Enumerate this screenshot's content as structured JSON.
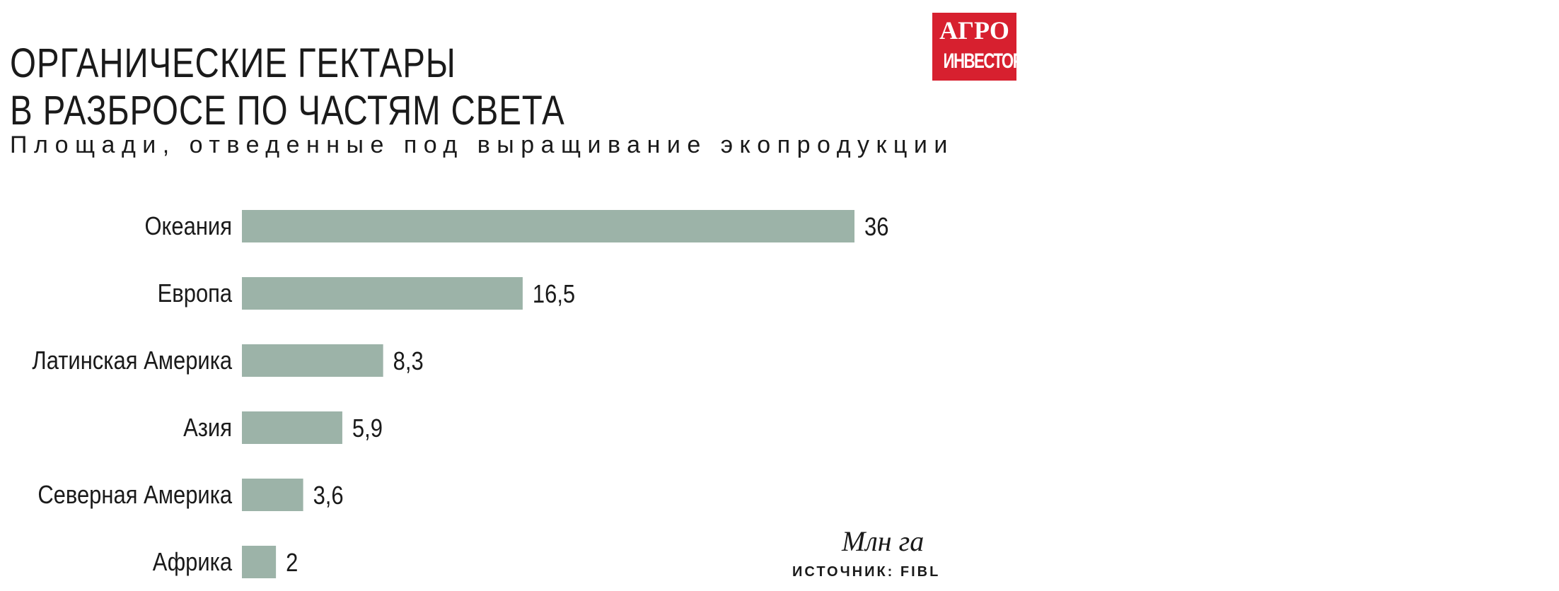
{
  "header": {
    "title_line1": "ОРГАНИЧЕСКИЕ ГЕКТАРЫ",
    "title_line2": "В РАЗБРОСЕ ПО ЧАСТЯМ СВЕТА",
    "subtitle": "Площади, отведенные под выращивание экопродукции"
  },
  "logo": {
    "line1": "АГРО",
    "line2": "ИНВЕСТОР",
    "color": "#d7202f"
  },
  "footer": {
    "unit": "Млн га",
    "source": "ИСТОЧНИК: FIBL"
  },
  "chart_data": {
    "type": "bar",
    "orientation": "horizontal",
    "categories": [
      "Океания",
      "Европа",
      "Латинская Америка",
      "Азия",
      "Северная Америка",
      "Африка"
    ],
    "values": [
      36,
      16.5,
      8.3,
      5.9,
      3.6,
      2
    ],
    "value_labels": [
      "36",
      "16,5",
      "8,3",
      "5,9",
      "3,6",
      "2"
    ],
    "title": "ОРГАНИЧЕСКИЕ ГЕКТАРЫ В РАЗБРОСЕ ПО ЧАСТЯМ СВЕТА",
    "subtitle": "Площади, отведенные под выращивание экопродукции",
    "unit": "Млн га",
    "xlim": [
      0,
      36
    ],
    "grid": false,
    "legend": "none",
    "bar_color": "#9cb3a8"
  }
}
